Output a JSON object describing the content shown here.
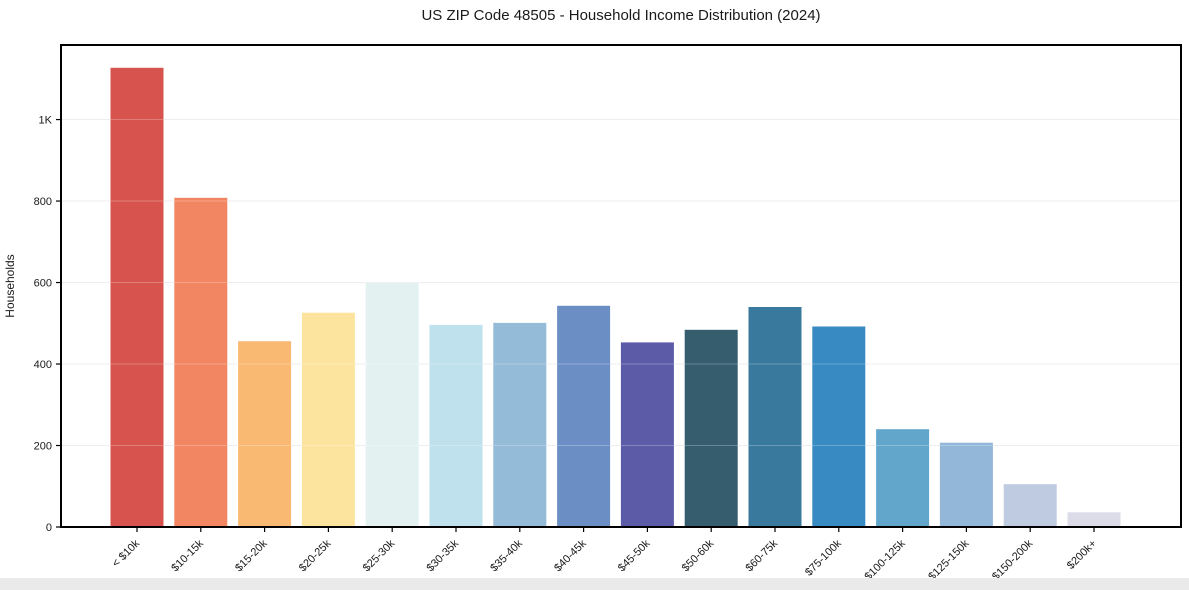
{
  "chart_data": {
    "type": "bar",
    "title": "US ZIP Code 48505 - Household Income Distribution (2024)",
    "xlabel": "",
    "ylabel": "Households",
    "categories": [
      "< $10k",
      "$10-15k",
      "$15-20k",
      "$20-25k",
      "$25-30k",
      "$30-35k",
      "$35-40k",
      "$40-45k",
      "$45-50k",
      "$50-60k",
      "$60-75k",
      "$75-100k",
      "$100-125k",
      "$125-150k",
      "$150-200k",
      "$200k+"
    ],
    "values": [
      1127,
      808,
      456,
      526,
      600,
      496,
      501,
      543,
      453,
      484,
      540,
      492,
      240,
      207,
      105,
      36
    ],
    "bar_colors": [
      "#d6544d",
      "#f28663",
      "#f9b973",
      "#fce49f",
      "#e3f2f1",
      "#bfe0ed",
      "#94bbd8",
      "#6b8fc4",
      "#5c5ba8",
      "#355d6e",
      "#38799d",
      "#378ac2",
      "#62a7cb",
      "#92b7d8",
      "#bfcbe0",
      "#dcdbe8"
    ],
    "yticks": {
      "values": [
        0,
        200,
        400,
        600,
        800,
        1000
      ],
      "labels": [
        "0",
        "200",
        "400",
        "600",
        "800",
        "1K"
      ]
    },
    "ylim": [
      0,
      1183
    ],
    "grid": "horizontal",
    "legend": "none",
    "x_tick_rotation_deg": 45
  },
  "ui": {
    "background_color": "#ffffff",
    "axis_color": "#000000",
    "text_color": "#1a1a1a",
    "gridline_color": "#e8e8e8",
    "bottom_bar_color": "#eaeaea"
  }
}
